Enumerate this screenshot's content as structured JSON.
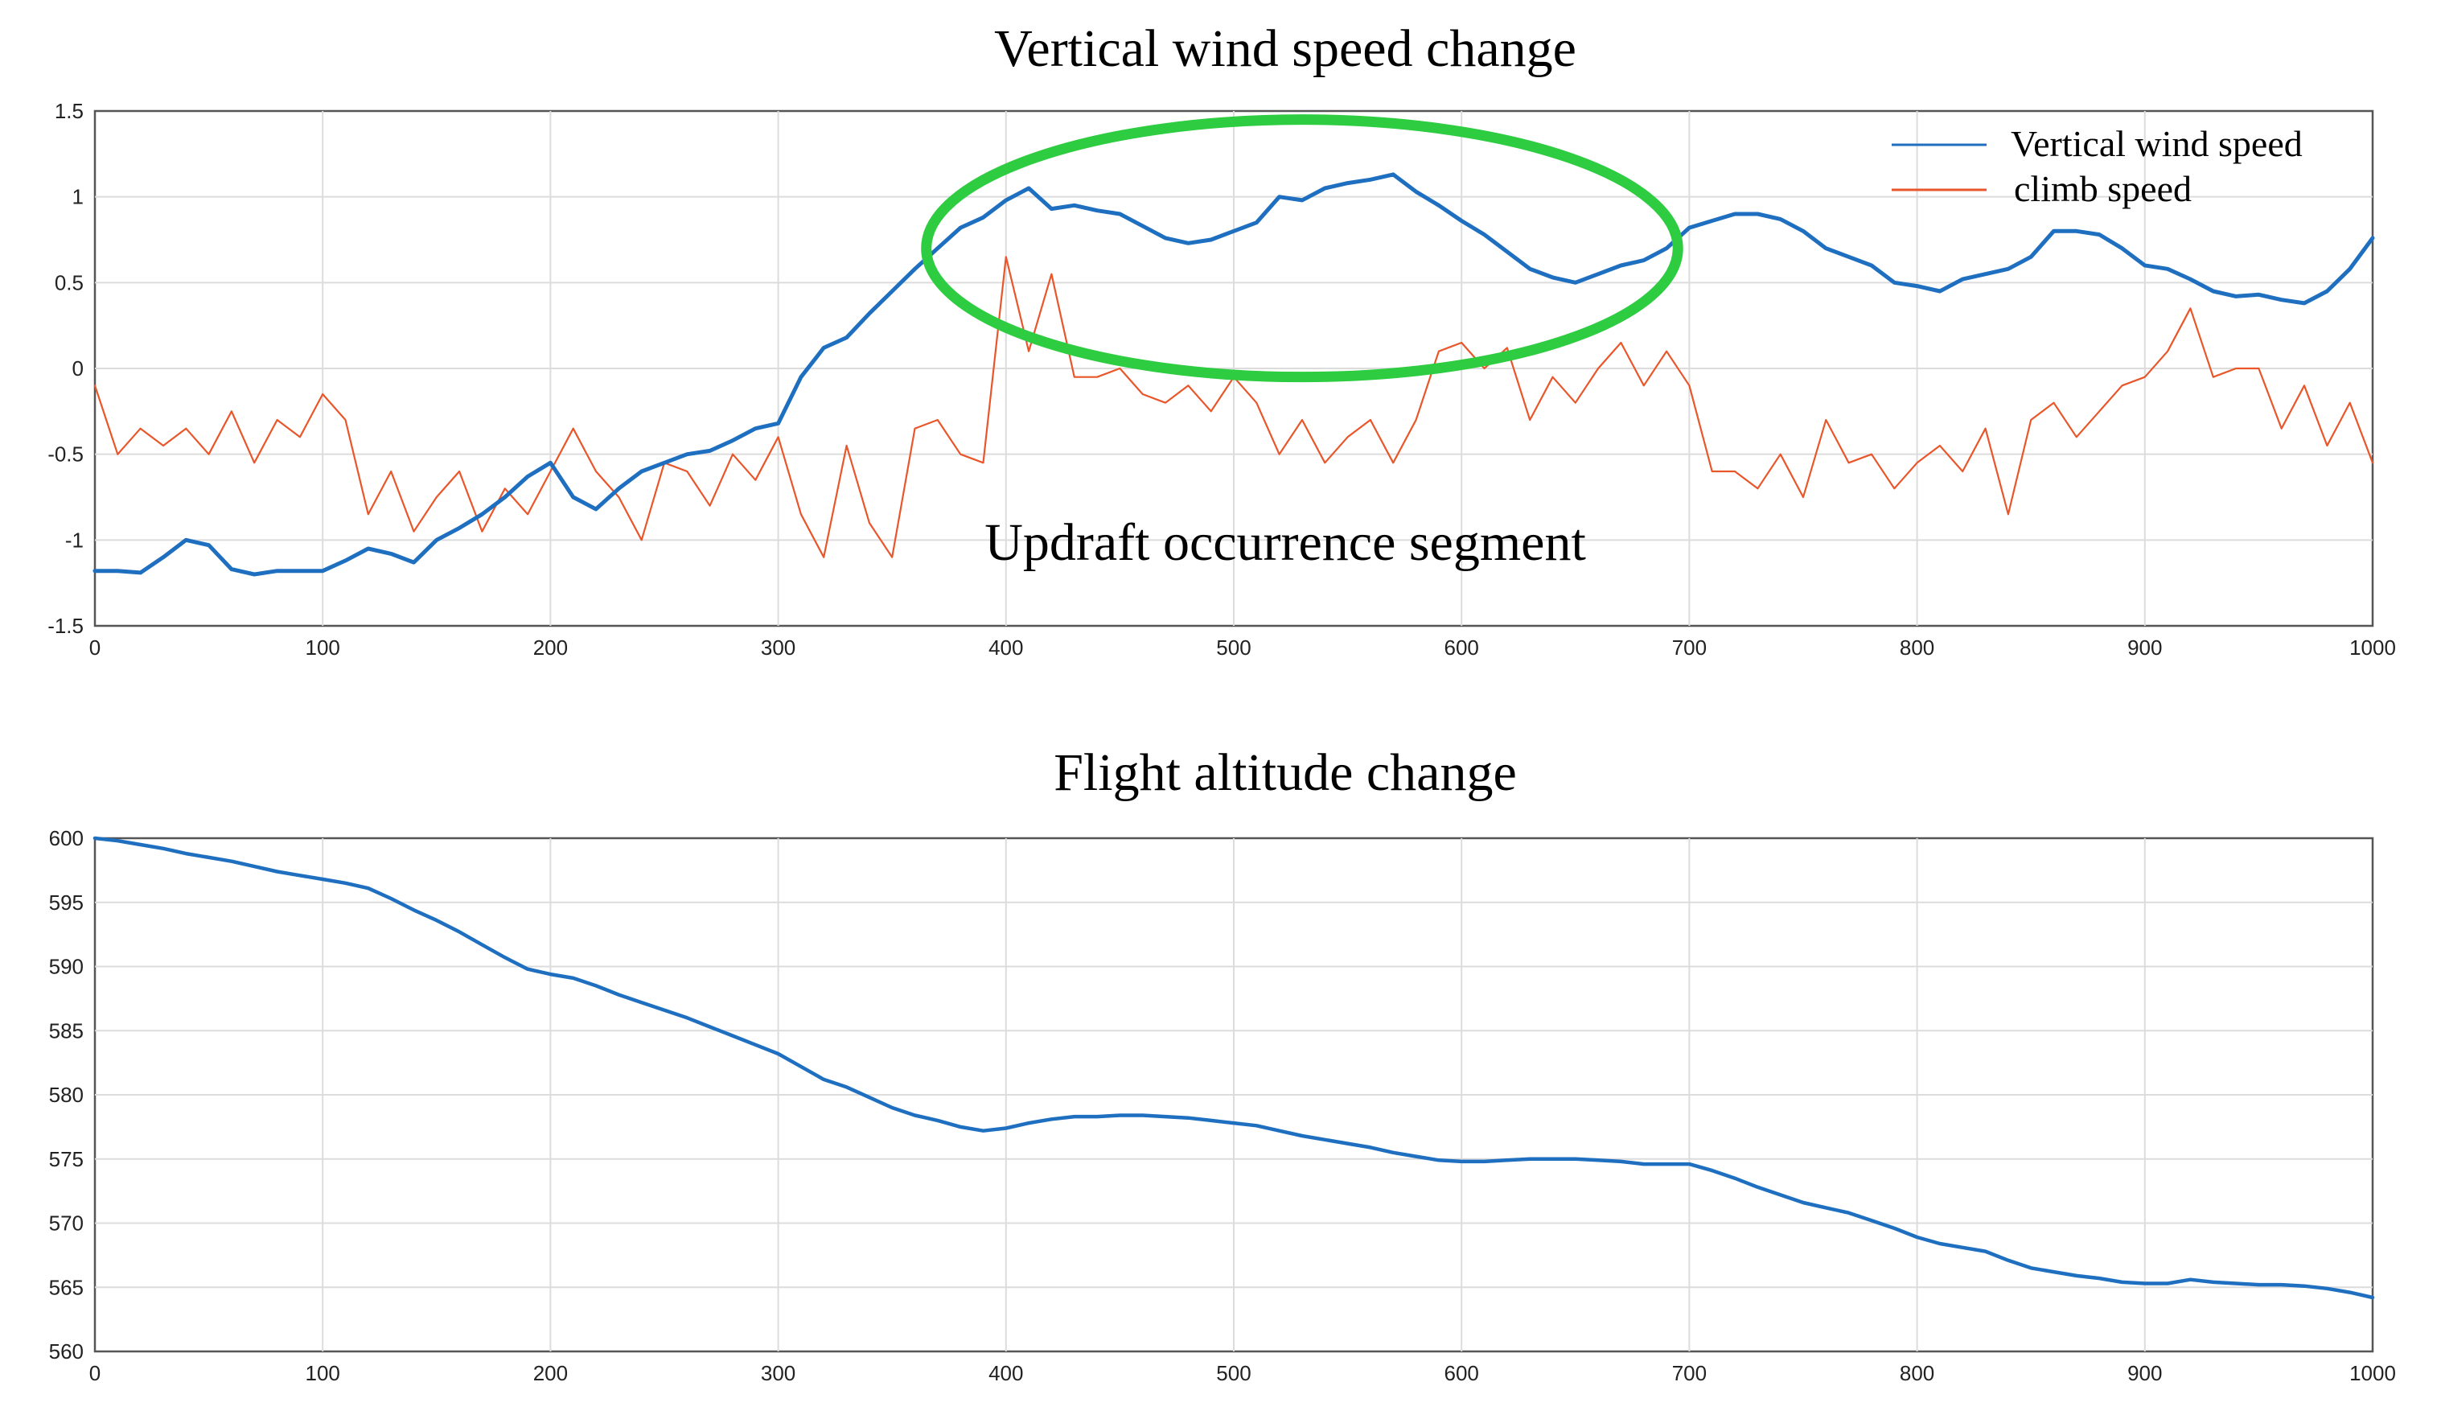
{
  "chart_data": [
    {
      "type": "line",
      "title": "Vertical wind speed change",
      "xlabel": "",
      "ylabel": "",
      "xlim": [
        0,
        1000
      ],
      "ylim": [
        -1.5,
        1.5
      ],
      "xticks": [
        0,
        100,
        200,
        300,
        400,
        500,
        600,
        700,
        800,
        900,
        1000
      ],
      "yticks": [
        -1.5,
        -1,
        -0.5,
        0,
        0.5,
        1,
        1.5
      ],
      "grid": true,
      "legend_position": "top-right",
      "annotation": "Updraft occurrence segment",
      "highlight": {
        "shape": "ellipse",
        "x_range": [
          365,
          695
        ],
        "y_range": [
          -0.05,
          1.45
        ],
        "color": "#2ecc40"
      },
      "series": [
        {
          "name": "Vertical wind speed",
          "color": "#1f6fc0",
          "x": [
            0,
            10,
            20,
            30,
            40,
            50,
            60,
            70,
            80,
            90,
            100,
            110,
            120,
            130,
            140,
            150,
            160,
            170,
            180,
            190,
            200,
            210,
            220,
            230,
            240,
            250,
            260,
            270,
            280,
            290,
            300,
            310,
            320,
            330,
            340,
            350,
            360,
            370,
            380,
            390,
            400,
            410,
            420,
            430,
            440,
            450,
            460,
            470,
            480,
            490,
            500,
            510,
            520,
            530,
            540,
            550,
            560,
            570,
            580,
            590,
            600,
            610,
            620,
            630,
            640,
            650,
            660,
            670,
            680,
            690,
            700,
            710,
            720,
            730,
            740,
            750,
            760,
            770,
            780,
            790,
            800,
            810,
            820,
            830,
            840,
            850,
            860,
            870,
            880,
            890,
            900,
            910,
            920,
            930,
            940,
            950,
            960,
            970,
            980,
            990,
            1000
          ],
          "values": [
            -1.18,
            -1.18,
            -1.19,
            -1.1,
            -1.0,
            -1.03,
            -1.17,
            -1.2,
            -1.18,
            -1.18,
            -1.18,
            -1.12,
            -1.05,
            -1.08,
            -1.13,
            -1.0,
            -0.93,
            -0.85,
            -0.75,
            -0.63,
            -0.55,
            -0.75,
            -0.82,
            -0.7,
            -0.6,
            -0.55,
            -0.5,
            -0.48,
            -0.42,
            -0.35,
            -0.32,
            -0.05,
            0.12,
            0.18,
            0.32,
            0.45,
            0.58,
            0.7,
            0.82,
            0.88,
            0.98,
            1.05,
            0.93,
            0.95,
            0.92,
            0.9,
            0.83,
            0.76,
            0.73,
            0.75,
            0.8,
            0.85,
            1.0,
            0.98,
            1.05,
            1.08,
            1.1,
            1.13,
            1.03,
            0.95,
            0.86,
            0.78,
            0.68,
            0.58,
            0.53,
            0.5,
            0.55,
            0.6,
            0.63,
            0.7,
            0.82,
            0.86,
            0.9,
            0.9,
            0.87,
            0.8,
            0.7,
            0.65,
            0.6,
            0.5,
            0.48,
            0.45,
            0.52,
            0.55,
            0.58,
            0.65,
            0.8,
            0.8,
            0.78,
            0.7,
            0.6,
            0.58,
            0.52,
            0.45,
            0.42,
            0.43,
            0.4,
            0.38,
            0.45,
            0.58,
            0.76
          ]
        },
        {
          "name": "climb speed",
          "color": "#e8562a",
          "x": [
            0,
            10,
            20,
            30,
            40,
            50,
            60,
            70,
            80,
            90,
            100,
            110,
            120,
            130,
            140,
            150,
            160,
            170,
            180,
            190,
            200,
            210,
            220,
            230,
            240,
            250,
            260,
            270,
            280,
            290,
            300,
            310,
            320,
            330,
            340,
            350,
            360,
            370,
            380,
            390,
            400,
            410,
            420,
            430,
            440,
            450,
            460,
            470,
            480,
            490,
            500,
            510,
            520,
            530,
            540,
            550,
            560,
            570,
            580,
            590,
            600,
            610,
            620,
            630,
            640,
            650,
            660,
            670,
            680,
            690,
            700,
            710,
            720,
            730,
            740,
            750,
            760,
            770,
            780,
            790,
            800,
            810,
            820,
            830,
            840,
            850,
            860,
            870,
            880,
            890,
            900,
            910,
            920,
            930,
            940,
            950,
            960,
            970,
            980,
            990,
            1000
          ],
          "values": [
            -0.1,
            -0.5,
            -0.35,
            -0.45,
            -0.35,
            -0.5,
            -0.25,
            -0.55,
            -0.3,
            -0.4,
            -0.15,
            -0.3,
            -0.85,
            -0.6,
            -0.95,
            -0.75,
            -0.6,
            -0.95,
            -0.7,
            -0.85,
            -0.6,
            -0.35,
            -0.6,
            -0.75,
            -1.0,
            -0.55,
            -0.6,
            -0.8,
            -0.5,
            -0.65,
            -0.4,
            -0.85,
            -1.1,
            -0.45,
            -0.9,
            -1.1,
            -0.35,
            -0.3,
            -0.5,
            -0.55,
            0.65,
            0.1,
            0.55,
            -0.05,
            -0.05,
            0.0,
            -0.15,
            -0.2,
            -0.1,
            -0.25,
            -0.05,
            -0.2,
            -0.5,
            -0.3,
            -0.55,
            -0.4,
            -0.3,
            -0.55,
            -0.3,
            0.1,
            0.15,
            0.0,
            0.12,
            -0.3,
            -0.05,
            -0.2,
            0.0,
            0.15,
            -0.1,
            0.1,
            -0.1,
            -0.6,
            -0.6,
            -0.7,
            -0.5,
            -0.75,
            -0.3,
            -0.55,
            -0.5,
            -0.7,
            -0.55,
            -0.45,
            -0.6,
            -0.35,
            -0.85,
            -0.3,
            -0.2,
            -0.4,
            -0.25,
            -0.1,
            -0.05,
            0.1,
            0.35,
            -0.05,
            0.0,
            0.0,
            -0.35,
            -0.1,
            -0.45,
            -0.2,
            -0.55
          ]
        }
      ]
    },
    {
      "type": "line",
      "title": "Flight altitude change",
      "xlabel": "",
      "ylabel": "",
      "xlim": [
        0,
        1000
      ],
      "ylim": [
        560,
        600
      ],
      "xticks": [
        0,
        100,
        200,
        300,
        400,
        500,
        600,
        700,
        800,
        900,
        1000
      ],
      "yticks": [
        560,
        565,
        570,
        575,
        580,
        585,
        590,
        595,
        600
      ],
      "grid": true,
      "series": [
        {
          "name": "Flight altitude",
          "color": "#1f6fc0",
          "x": [
            0,
            10,
            20,
            30,
            40,
            50,
            60,
            70,
            80,
            90,
            100,
            110,
            120,
            130,
            140,
            150,
            160,
            170,
            180,
            190,
            200,
            210,
            220,
            230,
            240,
            250,
            260,
            270,
            280,
            290,
            300,
            310,
            320,
            330,
            340,
            350,
            360,
            370,
            380,
            390,
            400,
            410,
            420,
            430,
            440,
            450,
            460,
            470,
            480,
            490,
            500,
            510,
            520,
            530,
            540,
            550,
            560,
            570,
            580,
            590,
            600,
            610,
            620,
            630,
            640,
            650,
            660,
            670,
            680,
            690,
            700,
            710,
            720,
            730,
            740,
            750,
            760,
            770,
            780,
            790,
            800,
            810,
            820,
            830,
            840,
            850,
            860,
            870,
            880,
            890,
            900,
            910,
            920,
            930,
            940,
            950,
            960,
            970,
            980,
            990,
            1000
          ],
          "values": [
            600,
            599.8,
            599.5,
            599.2,
            598.8,
            598.5,
            598.2,
            597.8,
            597.4,
            597.1,
            596.8,
            596.5,
            596.1,
            595.3,
            594.4,
            593.6,
            592.7,
            591.7,
            590.7,
            589.8,
            589.4,
            589.1,
            588.5,
            587.8,
            587.2,
            586.6,
            586,
            585.3,
            584.6,
            583.9,
            583.2,
            582.2,
            581.2,
            580.6,
            579.8,
            579,
            578.4,
            578,
            577.5,
            577.2,
            577.4,
            577.8,
            578.1,
            578.3,
            578.3,
            578.4,
            578.4,
            578.3,
            578.2,
            578,
            577.8,
            577.6,
            577.2,
            576.8,
            576.5,
            576.2,
            575.9,
            575.5,
            575.2,
            574.9,
            574.8,
            574.8,
            574.9,
            575,
            575,
            575,
            574.9,
            574.8,
            574.6,
            574.6,
            574.6,
            574.1,
            573.5,
            572.8,
            572.2,
            571.6,
            571.2,
            570.8,
            570.2,
            569.6,
            568.9,
            568.4,
            568.1,
            567.8,
            567.1,
            566.5,
            566.2,
            565.9,
            565.7,
            565.4,
            565.3,
            565.3,
            565.6,
            565.4,
            565.3,
            565.2,
            565.2,
            565.1,
            564.9,
            564.6,
            564.2
          ]
        }
      ]
    }
  ]
}
